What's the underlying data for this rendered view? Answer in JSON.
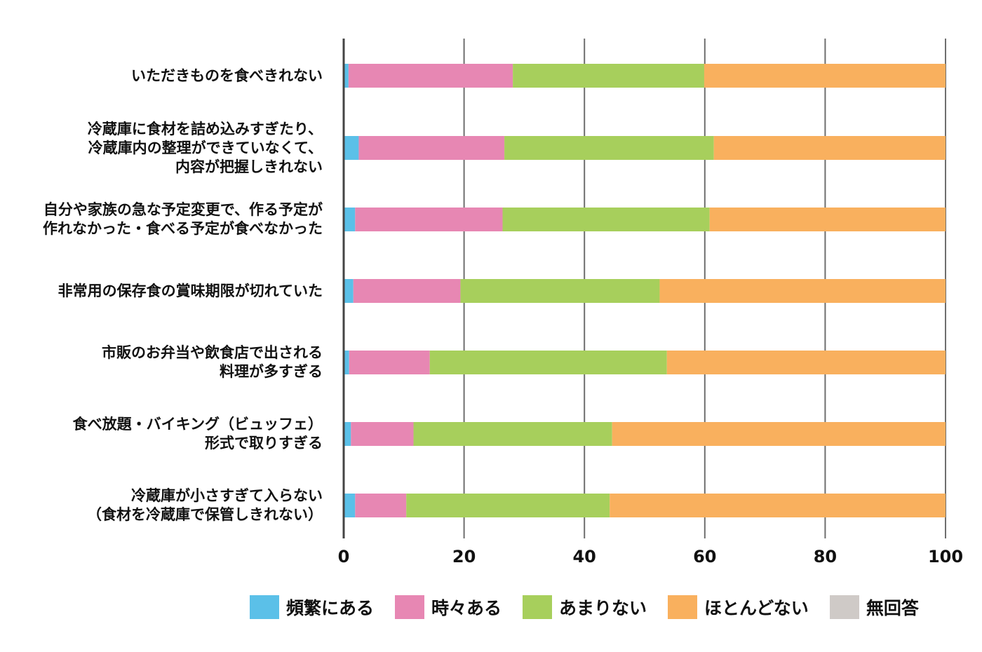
{
  "chart_data": {
    "type": "bar",
    "orientation": "horizontal",
    "stacked": true,
    "title": "",
    "xlabel": "",
    "ylabel": "",
    "xlim": [
      0,
      100
    ],
    "xticks": [
      "0",
      "20",
      "40",
      "60",
      "80",
      "100"
    ],
    "grid": true,
    "legend_position": "bottom",
    "categories": [
      "いただきものを食べきれない",
      "冷蔵庫に食材を詰め込みすぎたり、\n冷蔵庫内の整理ができていなくて、\n内容が把握しきれない",
      "自分や家族の急な予定変更で、作る予定が\n作れなかった・食べる予定が食べなかった",
      "非常用の保存食の賞味期限が切れていた",
      "市販のお弁当や飲食店で出される\n料理が多すぎる",
      "食べ放題・バイキング（ビュッフェ）\n形式で取りすぎる",
      "冷蔵庫が小さすぎて入らない\n（食材を冷蔵庫で保管しきれない）"
    ],
    "series": [
      {
        "name": "頻繁にある",
        "color": "#5bc0e8",
        "values": [
          0.8,
          2.5,
          1.9,
          1.6,
          0.9,
          1.2,
          1.9
        ]
      },
      {
        "name": "時々ある",
        "color": "#e787b3",
        "values": [
          27.3,
          24.2,
          24.5,
          17.8,
          13.4,
          10.4,
          8.5
        ]
      },
      {
        "name": "あまりない",
        "color": "#a7cf5c",
        "values": [
          31.8,
          34.8,
          34.4,
          33.1,
          39.4,
          33.0,
          33.8
        ]
      },
      {
        "name": "ほとんどない",
        "color": "#f9b05e",
        "values": [
          40.1,
          38.5,
          39.2,
          47.5,
          46.3,
          55.4,
          55.8
        ]
      },
      {
        "name": "無回答",
        "color": "#cfcac7",
        "values": [
          0,
          0,
          0,
          0,
          0,
          0,
          0
        ]
      }
    ]
  }
}
